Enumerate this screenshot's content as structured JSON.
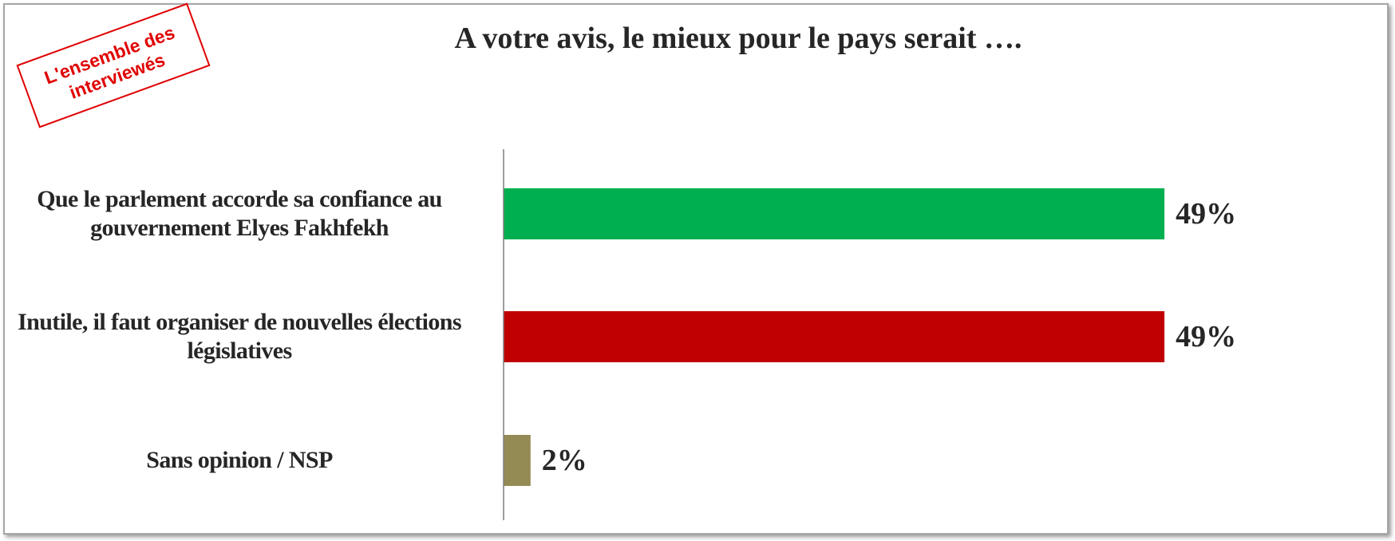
{
  "stamp": "L'ensemble des interviewés",
  "chart_data": {
    "type": "bar",
    "orientation": "horizontal",
    "title": "A votre avis, le mieux pour le pays serait ….",
    "categories": [
      "Que le parlement accorde sa confiance au gouvernement Elyes Fakhfekh",
      "Inutile, il faut organiser de nouvelles élections législatives",
      "Sans opinion / NSP"
    ],
    "values": [
      49,
      49,
      2
    ],
    "value_labels": [
      "49%",
      "49%",
      "2%"
    ],
    "colors": [
      "#00b050",
      "#c00000",
      "#948a54"
    ],
    "xlim": [
      0,
      60
    ]
  }
}
